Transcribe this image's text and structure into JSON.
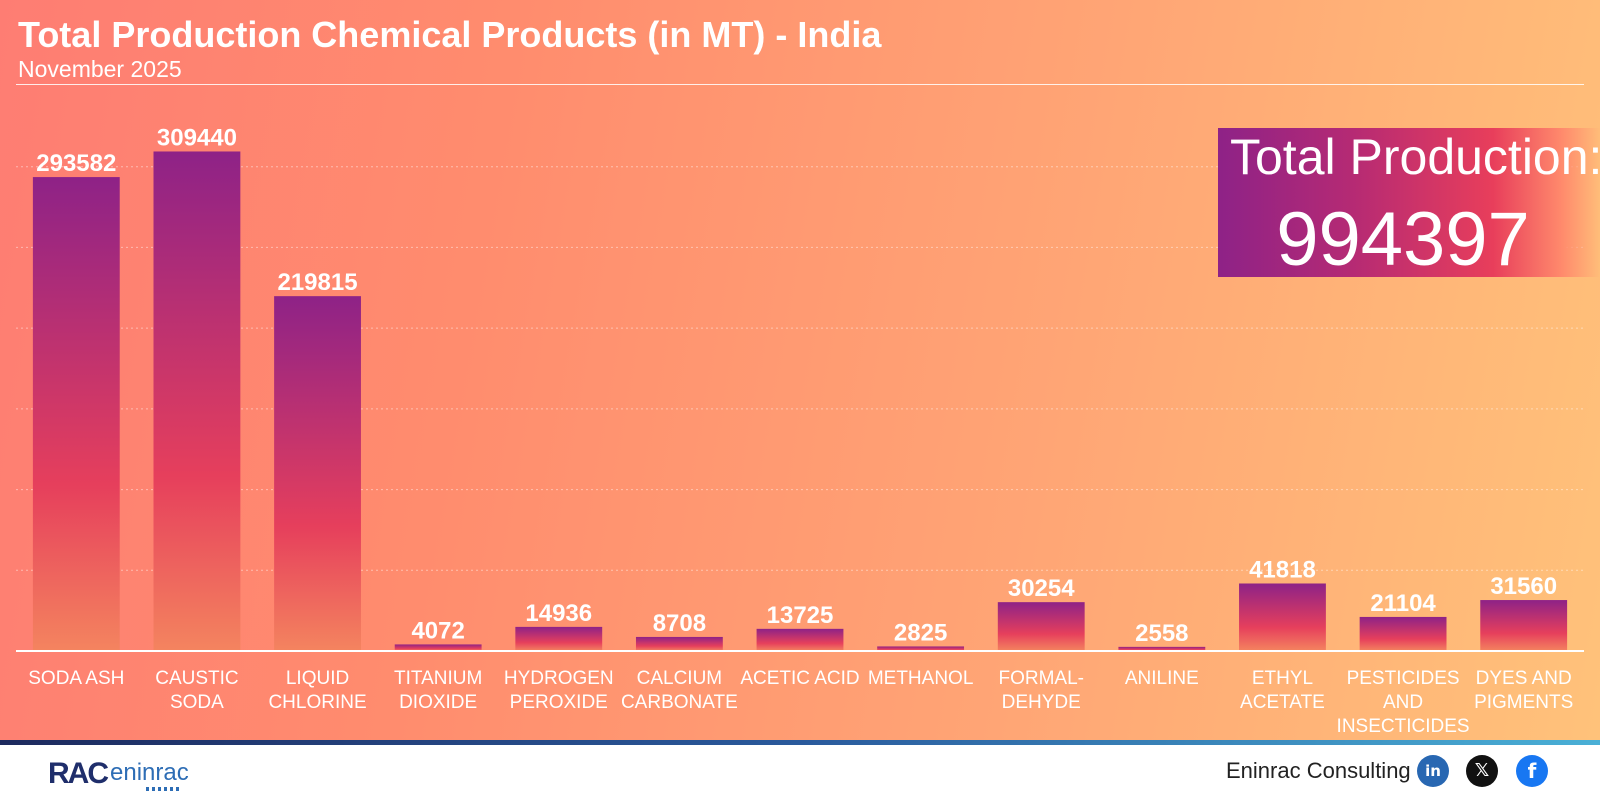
{
  "header": {
    "title": "Total Production Chemical Products (in MT) - India",
    "subtitle": "November 2025"
  },
  "total": {
    "label": "Total Production:",
    "value": "994397"
  },
  "chart_data": {
    "type": "bar",
    "title": "Total Production Chemical Products (in MT) - India",
    "subtitle": "November 2025",
    "xlabel": "",
    "ylabel": "",
    "categories": [
      [
        "SODA ASH"
      ],
      [
        "CAUSTIC",
        "SODA"
      ],
      [
        "LIQUID",
        "CHLORINE"
      ],
      [
        "TITANIUM",
        "DIOXIDE"
      ],
      [
        "HYDROGEN",
        "PEROXIDE"
      ],
      [
        "CALCIUM",
        "CARBONATE"
      ],
      [
        "ACETIC ACID"
      ],
      [
        "METHANOL"
      ],
      [
        "FORMAL-",
        "DEHYDE"
      ],
      [
        "ANILINE"
      ],
      [
        "ETHYL",
        "ACETATE"
      ],
      [
        "PESTICIDES",
        "AND",
        "INSECTICIDES"
      ],
      [
        "DYES AND",
        "PIGMENTS"
      ]
    ],
    "values": [
      293582,
      309440,
      219815,
      4072,
      14936,
      8708,
      13725,
      2825,
      30254,
      2558,
      41818,
      21104,
      31560
    ],
    "ylim": [
      0,
      350000
    ],
    "grid": true,
    "grid_style": "dotted horizontal",
    "legend": "none",
    "bar_gradient": [
      "#8e2287",
      "#e63f5c",
      "#f4845f"
    ]
  },
  "footer": {
    "logo": {
      "mark": "RAC",
      "text": "eninrac"
    },
    "company": "Eninrac Consulting",
    "social": [
      {
        "icon": "linkedin-icon",
        "glyph": "in"
      },
      {
        "icon": "x-twitter-icon",
        "glyph": "𝕏"
      },
      {
        "icon": "facebook-icon",
        "glyph": "f"
      }
    ]
  }
}
